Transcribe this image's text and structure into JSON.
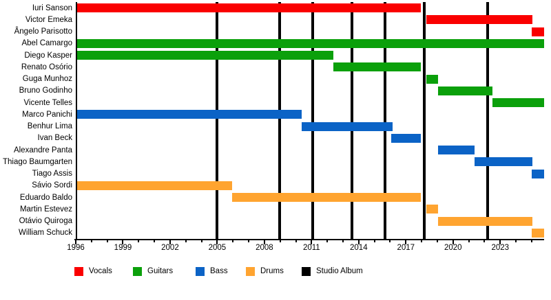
{
  "chart_data": {
    "type": "gantt",
    "x_axis": {
      "min": 1996,
      "max": 2025.75,
      "labeled_ticks": [
        1996,
        1999,
        2002,
        2005,
        2008,
        2011,
        2014,
        2017,
        2020,
        2023
      ],
      "minor_tick_step": 1,
      "minor_tick_first": 1996,
      "minor_tick_last": 2025
    },
    "role_colors": {
      "Vocals": "#fa0000",
      "Guitars": "#0ba00b",
      "Bass": "#0b63c6",
      "Drums": "#ffa430"
    },
    "album_color": "#000000",
    "members": [
      {
        "name": "Iuri Sanson",
        "role": "Vocals",
        "start": 1996.0,
        "end": 2017.85
      },
      {
        "name": "Victor Emeka",
        "role": "Vocals",
        "start": 2018.2,
        "end": 2024.95
      },
      {
        "name": "Ângelo Parisotto",
        "role": "Vocals",
        "start": 2024.9,
        "end": 2025.7
      },
      {
        "name": "Abel Camargo",
        "role": "Guitars",
        "start": 1996.0,
        "end": 2025.7
      },
      {
        "name": "Diego Kasper",
        "role": "Guitars",
        "start": 1996.0,
        "end": 2012.3
      },
      {
        "name": "Renato Osório",
        "role": "Guitars",
        "start": 2012.3,
        "end": 2017.85
      },
      {
        "name": "Guga Munhoz",
        "role": "Guitars",
        "start": 2018.2,
        "end": 2018.95
      },
      {
        "name": "Bruno Godinho",
        "role": "Guitars",
        "start": 2018.95,
        "end": 2022.4
      },
      {
        "name": "Vicente Telles",
        "role": "Guitars",
        "start": 2022.4,
        "end": 2025.7
      },
      {
        "name": "Marco Panichi",
        "role": "Bass",
        "start": 1996.0,
        "end": 2010.3
      },
      {
        "name": "Benhur Lima",
        "role": "Bass",
        "start": 2010.3,
        "end": 2016.05
      },
      {
        "name": "Ivan Beck",
        "role": "Bass",
        "start": 2016.0,
        "end": 2017.85
      },
      {
        "name": "Alexandre Panta",
        "role": "Bass",
        "start": 2018.95,
        "end": 2021.3
      },
      {
        "name": "Thiago Baumgarten",
        "role": "Bass",
        "start": 2021.3,
        "end": 2024.95
      },
      {
        "name": "Tiago Assis",
        "role": "Bass",
        "start": 2024.9,
        "end": 2025.7
      },
      {
        "name": "Sávio Sordi",
        "role": "Drums",
        "start": 1996.0,
        "end": 2005.85
      },
      {
        "name": "Eduardo Baldo",
        "role": "Drums",
        "start": 2005.85,
        "end": 2017.85
      },
      {
        "name": "Martin Estevez",
        "role": "Drums",
        "start": 2018.2,
        "end": 2018.95
      },
      {
        "name": "Otávio Quiroga",
        "role": "Drums",
        "start": 2018.95,
        "end": 2024.95
      },
      {
        "name": "William Schuck",
        "role": "Drums",
        "start": 2024.9,
        "end": 2025.7
      }
    ],
    "albums": [
      2004.9,
      2008.9,
      2011.0,
      2013.5,
      2015.6,
      2018.1,
      2022.1
    ],
    "legend": [
      {
        "label": "Vocals",
        "color": "#fa0000"
      },
      {
        "label": "Guitars",
        "color": "#0ba00b"
      },
      {
        "label": "Bass",
        "color": "#0b63c6"
      },
      {
        "label": "Drums",
        "color": "#ffa430"
      },
      {
        "label": "Studio Album",
        "color": "#000000"
      }
    ]
  }
}
